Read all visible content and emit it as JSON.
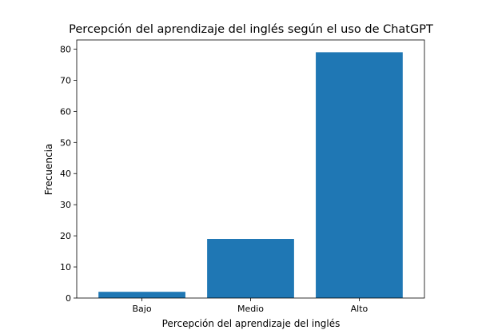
{
  "chart_data": {
    "type": "bar",
    "title": "Percepción del aprendizaje del inglés según el uso de ChatGPT",
    "xlabel": "Percepción del aprendizaje del inglés",
    "ylabel": "Frecuencia",
    "categories": [
      "Bajo",
      "Medio",
      "Alto"
    ],
    "values": [
      2,
      19,
      79
    ],
    "ylim": [
      0,
      82.95
    ],
    "yticks": [
      "0",
      "10",
      "20",
      "30",
      "40",
      "50",
      "60",
      "70",
      "80"
    ],
    "bar_color": "#1f77b4",
    "grid": false,
    "legend": "none"
  }
}
